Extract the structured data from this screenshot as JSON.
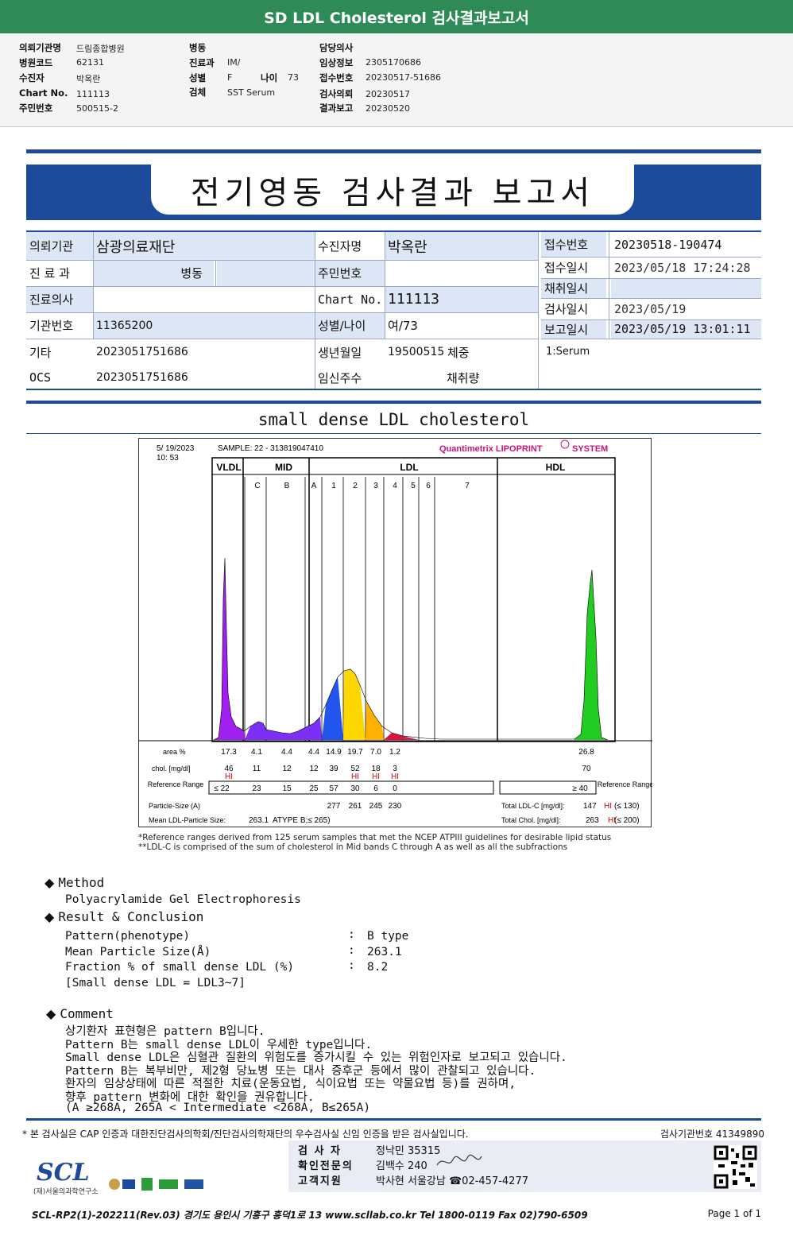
{
  "top": {
    "title": "SD LDL Cholesterol 검사결과보고서",
    "fields": [
      {
        "label": "의뢰기관명",
        "value": "드림종합병원"
      },
      {
        "label": "병원코드",
        "value": "62131"
      },
      {
        "label": "수진자",
        "value": "박옥란"
      },
      {
        "label": "Chart No.",
        "value": "111113"
      },
      {
        "label": "주민번호",
        "value": "500515-2"
      },
      {
        "label": "병동",
        "value": ""
      },
      {
        "label": "진료과",
        "value": "IM/"
      },
      {
        "label": "성별",
        "value": "F"
      },
      {
        "label": "나이",
        "value": "73"
      },
      {
        "label": "검체",
        "value": "SST Serum"
      },
      {
        "label": "담당의사",
        "value": ""
      },
      {
        "label": "임상정보",
        "value": "2305170686"
      },
      {
        "label": "접수번호",
        "value": "20230517-51686"
      },
      {
        "label": "검사의뢰",
        "value": "20230517"
      },
      {
        "label": "결과보고",
        "value": "20230520"
      }
    ]
  },
  "report": {
    "title": "전기영동 검사결과 보고서",
    "info": {
      "inst_label": "의뢰기관",
      "inst_value": "삼광의료재단",
      "patient_label": "수진자명",
      "patient_value": "박옥란",
      "accno_label": "접수번호",
      "accno_value": "20230518-190474",
      "dept_label": "진 료 과",
      "dept_value": "병동",
      "rrn_label": "주민번호",
      "rrn_value": "",
      "accdate_label": "접수일시",
      "accdate_value": "2023/05/18 17:24:28",
      "collect_label": "채취일시",
      "collect_value": "",
      "doctor_label": "진료의사",
      "doctor_value": "",
      "chart_label": "Chart No.",
      "chart_value": "111113",
      "testdate_label": "검사일시",
      "testdate_value": "2023/05/19",
      "instno_label": "기관번호",
      "instno_value": "11365200",
      "sexage_label": "성별/나이",
      "sexage_value": "여/73",
      "repdate_label": "보고일시",
      "repdate_value": "2023/05/19 13:01:11",
      "etc_label": "기타",
      "etc_value": "2023051751686",
      "birth_label": "생년월일",
      "birth_value": "19500515",
      "weight_label": "체중",
      "specimen_value": "1:Serum",
      "ocs_label": "OCS",
      "ocs_value": "2023051751686",
      "preg_label": "임신주수",
      "volume_label": "채취량"
    },
    "section_title": "small dense LDL cholesterol"
  },
  "chart_data": {
    "type": "area",
    "date": "5/ 19/2023",
    "time": "10: 53",
    "sample": "SAMPLE:   22 - 313819047410",
    "brand": "Quantimetrix LIPOPRINT",
    "brand_suffix": "SYSTEM",
    "groups": [
      "VLDL",
      "MID",
      "LDL",
      "HDL"
    ],
    "bands": [
      "C",
      "B",
      "A",
      "1",
      "2",
      "3",
      "4",
      "5",
      "6",
      "7"
    ],
    "row_labels": {
      "area": "area %",
      "chol": "chol. [mg/dl]",
      "ref": "Reference Range",
      "ref_right": "Reference Range",
      "particle": "Particle-Size (A)",
      "mean": "Mean LDL-Particle Size:"
    },
    "area": [
      "17.3",
      "4.1",
      "4.4",
      "4.4",
      "14.9",
      "19.7",
      "7.0",
      "1.2",
      "26.8"
    ],
    "chol": [
      "46",
      "11",
      "12",
      "12",
      "39",
      "52",
      "18",
      "3",
      "70"
    ],
    "hi_flags": [
      "HI",
      "",
      "",
      "",
      "",
      "HI",
      "HI",
      "HI",
      ""
    ],
    "ref_low": "≤ 22",
    "ref": [
      "23",
      "15",
      "25",
      "57",
      "30",
      "6",
      "0"
    ],
    "ref_hdl": "≥ 40",
    "particle": [
      "277",
      "261",
      "245",
      "230"
    ],
    "mean_value": "263.1",
    "mean_type": "ATYPE B;≤ 265)",
    "total_ldl_label": "Total LDL-C [mg/dl]:",
    "total_ldl": "147",
    "total_ldl_flag": "HI",
    "total_ldl_ref": "(≤ 130)",
    "total_chol_label": "Total Chol. [mg/dl]:",
    "total_chol": "263",
    "total_chol_flag": "HI",
    "total_chol_ref": "(≤ 200)",
    "colors": {
      "vldl": "#a020f0",
      "mid": "#7b2ff7",
      "ldl1": "#ffd700",
      "ldl2": "#ffb000",
      "ldl3": "#e01040",
      "hdl": "#22cc22",
      "hi": "#d00000",
      "brand": "#cc1177"
    }
  },
  "notes": [
    "*Reference ranges derived from 125 serum samples that met the NCEP ATPIII guidelines for desirable lipid status",
    "**LDL-C is comprised of the sum of cholesterol in Mid bands C through A as well as all the subfractions"
  ],
  "method": {
    "heading": "Method",
    "text": "Polyacrylamide Gel Electrophoresis"
  },
  "result": {
    "heading": "Result & Conclusion",
    "rows": [
      {
        "label": "Pattern(phenotype)",
        "value": "B type"
      },
      {
        "label": "Mean Particle Size(Å)",
        "value": "263.1"
      },
      {
        "label": "Fraction % of small dense LDL (%)",
        "value": "8.2"
      }
    ],
    "sep": ":",
    "note": "[Small dense LDL = LDL3~7]"
  },
  "comment": {
    "heading": "Comment",
    "lines": [
      "상기환자 표현형은 pattern B입니다.",
      "Pattern B는 small dense LDL이 우세한 type입니다.",
      "Small dense LDL은 심혈관 질환의 위험도를 증가시킬 수 있는 위험인자로 보고되고 있습니다.",
      "Pattern B는 복부비만, 제2형 당뇨병 또는 대사 증후군 등에서 많이 관찰되고 있습니다.",
      "환자의 임상상태에 따른 적절한 치료(운동요법, 식이요법 또는 약물요법 등)를 권하며,",
      "향후 pattern 변화에 대한 확인을 권유합니다.",
      "(A ≥268A, 265A < Intermediate <268A, B≤265A)"
    ]
  },
  "footer": {
    "cert": "* 본 검사실은 CAP 인증과 대한진단검사의학회/진단검사의학재단의 우수검사실 신임 인증을 받은 검사실입니다.",
    "lab_no": "검사기관번호  41349890",
    "tester_label": "검 사 자",
    "tester": "정낙민 35315",
    "specialist_label": "확인전문의",
    "specialist": "김백수 240",
    "support_label": "고객지원",
    "support": "박사현 서울강남 ☎02-457-4277",
    "logo": "SCL",
    "logo_sub": "(재)서울의과학연구소",
    "bottom_line": "SCL-RP2(1)-202211(Rev.03)  경기도 용인시 기흥구 흥덕1로 13  www.scllab.co.kr  Tel 1800-0119  Fax 02)790-6509",
    "page": "Page 1 of 1"
  }
}
